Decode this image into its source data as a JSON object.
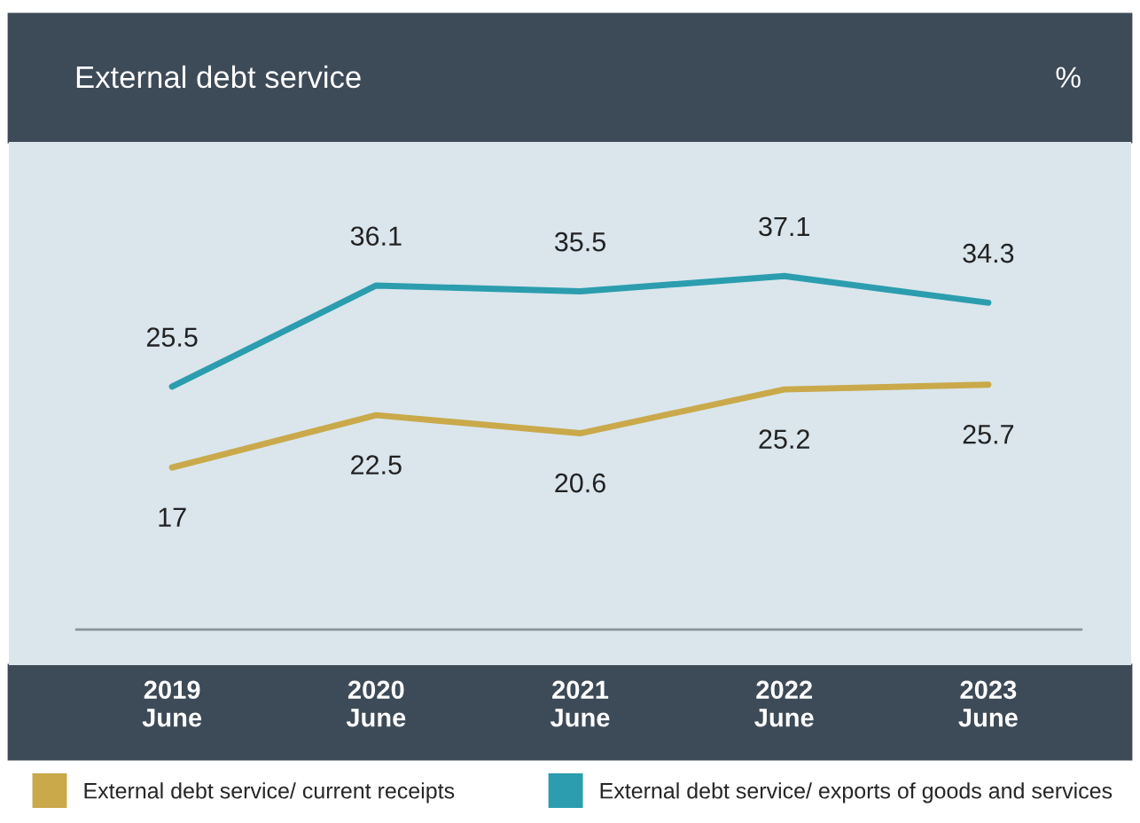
{
  "chart_data": {
    "type": "line",
    "title": "External debt service",
    "annotations": [
      "%"
    ],
    "categories": [
      "2019\nJune",
      "2020\nJune",
      "2021\nJune",
      "2022\nJune",
      "2023\nJune"
    ],
    "series": [
      {
        "name": "External debt service/ current receipts",
        "color": "#c9a94a",
        "values": [
          17,
          22.5,
          20.6,
          25.2,
          25.7
        ]
      },
      {
        "name": "External debt service/ exports of goods and services",
        "color": "#2b9dae",
        "values": [
          25.5,
          36.1,
          35.5,
          37.1,
          34.3
        ]
      }
    ],
    "data_labels": true,
    "legend": "bottom",
    "grid": false,
    "marker": "none",
    "line_style": "solid"
  }
}
